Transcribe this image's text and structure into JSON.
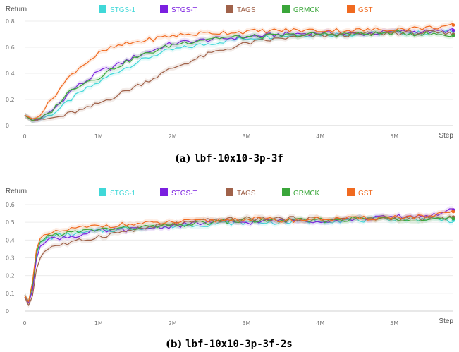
{
  "chart_data": [
    {
      "type": "line",
      "caption_prefix": "(a)",
      "caption_name": "lbf-10x10-3p-3f",
      "ylabel": "Return",
      "xlabel": "Step",
      "xlim": [
        0,
        5800000
      ],
      "ylim": [
        0,
        0.8
      ],
      "x_ticks": [
        {
          "v": 0,
          "label": "0"
        },
        {
          "v": 1000000,
          "label": "1M"
        },
        {
          "v": 2000000,
          "label": "2M"
        },
        {
          "v": 3000000,
          "label": "3M"
        },
        {
          "v": 4000000,
          "label": "4M"
        },
        {
          "v": 5000000,
          "label": "5M"
        }
      ],
      "y_ticks": [
        {
          "v": 0,
          "label": "0"
        },
        {
          "v": 0.2,
          "label": "0.2"
        },
        {
          "v": 0.4,
          "label": "0.4"
        },
        {
          "v": 0.6,
          "label": "0.6"
        },
        {
          "v": 0.8,
          "label": "0.8"
        }
      ],
      "grid": true,
      "legend_position": "top",
      "series": [
        {
          "name": "STGS-1",
          "color": "#40d8d8",
          "x": [
            0,
            100000,
            200000,
            300000,
            400000,
            500000,
            600000,
            700000,
            800000,
            1000000,
            1200000,
            1500000,
            1800000,
            2000000,
            2500000,
            3000000,
            3500000,
            4000000,
            4500000,
            5000000,
            5500000,
            5800000
          ],
          "values": [
            0.08,
            0.04,
            0.05,
            0.07,
            0.1,
            0.14,
            0.19,
            0.23,
            0.27,
            0.33,
            0.4,
            0.48,
            0.55,
            0.58,
            0.63,
            0.67,
            0.69,
            0.7,
            0.7,
            0.71,
            0.71,
            0.72
          ]
        },
        {
          "name": "STGS-T",
          "color": "#7b1fe0",
          "x": [
            0,
            100000,
            200000,
            300000,
            400000,
            500000,
            600000,
            700000,
            800000,
            1000000,
            1200000,
            1500000,
            1800000,
            2000000,
            2500000,
            3000000,
            3500000,
            4000000,
            4500000,
            5000000,
            5500000,
            5800000
          ],
          "values": [
            0.08,
            0.04,
            0.05,
            0.08,
            0.13,
            0.19,
            0.25,
            0.3,
            0.33,
            0.41,
            0.45,
            0.53,
            0.59,
            0.63,
            0.66,
            0.68,
            0.7,
            0.71,
            0.7,
            0.72,
            0.72,
            0.73
          ]
        },
        {
          "name": "TAGS",
          "color": "#a0624a",
          "x": [
            0,
            100000,
            200000,
            300000,
            400000,
            500000,
            600000,
            700000,
            800000,
            1000000,
            1200000,
            1500000,
            1800000,
            2000000,
            2500000,
            3000000,
            3500000,
            4000000,
            4500000,
            5000000,
            5500000,
            5800000
          ],
          "values": [
            0.08,
            0.04,
            0.04,
            0.05,
            0.06,
            0.07,
            0.09,
            0.11,
            0.12,
            0.17,
            0.22,
            0.3,
            0.38,
            0.44,
            0.55,
            0.63,
            0.67,
            0.69,
            0.7,
            0.71,
            0.71,
            0.7
          ]
        },
        {
          "name": "GRMCK",
          "color": "#3aa63a",
          "x": [
            0,
            100000,
            200000,
            300000,
            400000,
            500000,
            600000,
            700000,
            800000,
            1000000,
            1200000,
            1500000,
            1800000,
            2000000,
            2500000,
            3000000,
            3500000,
            4000000,
            4500000,
            5000000,
            5500000,
            5800000
          ],
          "values": [
            0.08,
            0.04,
            0.05,
            0.08,
            0.13,
            0.2,
            0.26,
            0.3,
            0.33,
            0.37,
            0.44,
            0.52,
            0.58,
            0.62,
            0.67,
            0.68,
            0.69,
            0.7,
            0.7,
            0.71,
            0.7,
            0.69
          ]
        },
        {
          "name": "GST",
          "color": "#f06a20",
          "x": [
            0,
            100000,
            200000,
            300000,
            400000,
            500000,
            600000,
            700000,
            800000,
            1000000,
            1200000,
            1500000,
            1800000,
            2000000,
            2500000,
            3000000,
            3500000,
            4000000,
            4500000,
            5000000,
            5500000,
            5800000
          ],
          "values": [
            0.08,
            0.05,
            0.08,
            0.15,
            0.23,
            0.3,
            0.37,
            0.43,
            0.47,
            0.55,
            0.6,
            0.64,
            0.67,
            0.69,
            0.71,
            0.72,
            0.73,
            0.73,
            0.73,
            0.74,
            0.75,
            0.77
          ]
        }
      ]
    },
    {
      "type": "line",
      "caption_prefix": "(b)",
      "caption_name": "lbf-10x10-3p-3f-2s",
      "ylabel": "Return",
      "xlabel": "Step",
      "xlim": [
        0,
        5800000
      ],
      "ylim": [
        0,
        0.6
      ],
      "x_ticks": [
        {
          "v": 0,
          "label": "0"
        },
        {
          "v": 1000000,
          "label": "1M"
        },
        {
          "v": 2000000,
          "label": "2M"
        },
        {
          "v": 3000000,
          "label": "3M"
        },
        {
          "v": 4000000,
          "label": "4M"
        },
        {
          "v": 5000000,
          "label": "5M"
        }
      ],
      "y_ticks": [
        {
          "v": 0,
          "label": "0"
        },
        {
          "v": 0.1,
          "label": "0.1"
        },
        {
          "v": 0.2,
          "label": "0.2"
        },
        {
          "v": 0.3,
          "label": "0.3"
        },
        {
          "v": 0.4,
          "label": "0.4"
        },
        {
          "v": 0.5,
          "label": "0.5"
        },
        {
          "v": 0.6,
          "label": "0.6"
        }
      ],
      "grid": true,
      "legend_position": "top",
      "series": [
        {
          "name": "STGS-1",
          "color": "#40d8d8",
          "x": [
            0,
            50000,
            100000,
            150000,
            200000,
            300000,
            400000,
            600000,
            800000,
            1000000,
            1500000,
            2000000,
            2500000,
            3000000,
            3500000,
            4000000,
            4500000,
            5000000,
            5500000,
            5800000
          ],
          "values": [
            0.09,
            0.05,
            0.12,
            0.3,
            0.38,
            0.41,
            0.42,
            0.43,
            0.44,
            0.45,
            0.47,
            0.48,
            0.49,
            0.5,
            0.5,
            0.51,
            0.51,
            0.52,
            0.52,
            0.51
          ]
        },
        {
          "name": "STGS-T",
          "color": "#7b1fe0",
          "x": [
            0,
            50000,
            100000,
            150000,
            200000,
            300000,
            400000,
            600000,
            800000,
            1000000,
            1500000,
            2000000,
            2500000,
            3000000,
            3500000,
            4000000,
            4500000,
            5000000,
            5500000,
            5800000
          ],
          "values": [
            0.09,
            0.04,
            0.1,
            0.28,
            0.37,
            0.4,
            0.41,
            0.42,
            0.43,
            0.45,
            0.46,
            0.48,
            0.5,
            0.5,
            0.51,
            0.51,
            0.52,
            0.53,
            0.54,
            0.57
          ]
        },
        {
          "name": "TAGS",
          "color": "#a0624a",
          "x": [
            0,
            50000,
            100000,
            150000,
            200000,
            300000,
            400000,
            600000,
            800000,
            1000000,
            1500000,
            2000000,
            2500000,
            3000000,
            3500000,
            4000000,
            4500000,
            5000000,
            5500000,
            5800000
          ],
          "values": [
            0.08,
            0.03,
            0.07,
            0.22,
            0.3,
            0.35,
            0.37,
            0.38,
            0.4,
            0.42,
            0.46,
            0.49,
            0.51,
            0.52,
            0.52,
            0.52,
            0.52,
            0.52,
            0.52,
            0.53
          ]
        },
        {
          "name": "GRMCK",
          "color": "#3aa63a",
          "x": [
            0,
            50000,
            100000,
            150000,
            200000,
            300000,
            400000,
            600000,
            800000,
            1000000,
            1500000,
            2000000,
            2500000,
            3000000,
            3500000,
            4000000,
            4500000,
            5000000,
            5500000,
            5800000
          ],
          "values": [
            0.09,
            0.05,
            0.12,
            0.31,
            0.39,
            0.42,
            0.43,
            0.44,
            0.45,
            0.46,
            0.47,
            0.48,
            0.5,
            0.51,
            0.51,
            0.51,
            0.52,
            0.52,
            0.52,
            0.52
          ]
        },
        {
          "name": "GST",
          "color": "#f06a20",
          "x": [
            0,
            50000,
            100000,
            150000,
            200000,
            300000,
            400000,
            600000,
            800000,
            1000000,
            1500000,
            2000000,
            2500000,
            3000000,
            3500000,
            4000000,
            4500000,
            5000000,
            5500000,
            5800000
          ],
          "values": [
            0.09,
            0.05,
            0.15,
            0.33,
            0.4,
            0.43,
            0.44,
            0.46,
            0.47,
            0.48,
            0.49,
            0.5,
            0.51,
            0.52,
            0.51,
            0.52,
            0.52,
            0.53,
            0.53,
            0.56
          ]
        }
      ]
    }
  ]
}
